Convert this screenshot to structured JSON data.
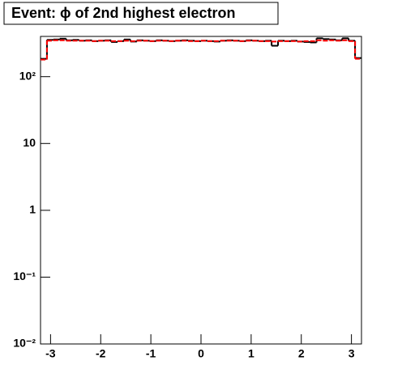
{
  "chart_data": {
    "type": "step-histogram",
    "title": "Event: ϕ of 2nd highest electron",
    "log_y": true,
    "xlim": [
      -3.2,
      3.2
    ],
    "xticks": [
      -3,
      -2,
      -1,
      0,
      1,
      2,
      3
    ],
    "ylim": [
      0.01,
      400
    ],
    "yticks": [
      {
        "value": 0.01,
        "label": "10⁻²"
      },
      {
        "value": 0.1,
        "label": "10⁻¹"
      },
      1,
      10,
      {
        "value": 100,
        "label": "10²"
      }
    ],
    "bins": [
      -3.2,
      -3.072,
      -2.944,
      -2.816,
      -2.688,
      -2.56,
      -2.432,
      -2.304,
      -2.176,
      -2.048,
      -1.92,
      -1.792,
      -1.664,
      -1.536,
      -1.408,
      -1.28,
      -1.152,
      -1.024,
      -0.896,
      -0.768,
      -0.64,
      -0.512,
      -0.384,
      -0.256,
      -0.128,
      0,
      0.128,
      0.256,
      0.384,
      0.512,
      0.64,
      0.768,
      0.896,
      1.024,
      1.152,
      1.28,
      1.408,
      1.536,
      1.664,
      1.792,
      1.92,
      2.048,
      2.176,
      2.304,
      2.432,
      2.56,
      2.688,
      2.816,
      2.944,
      3.072,
      3.2
    ],
    "series": [
      {
        "color": "#000000",
        "line_style": "solid",
        "values": [
          185,
          355,
          360,
          370,
          350,
          355,
          345,
          350,
          340,
          345,
          350,
          330,
          340,
          360,
          335,
          350,
          345,
          340,
          350,
          345,
          340,
          345,
          350,
          345,
          340,
          345,
          340,
          335,
          345,
          350,
          345,
          340,
          350,
          345,
          340,
          345,
          290,
          345,
          340,
          345,
          335,
          330,
          325,
          375,
          365,
          360,
          350,
          375,
          345,
          190
        ]
      },
      {
        "color": "#ff0000",
        "line_style": "dashed",
        "values": [
          180,
          345,
          350,
          350,
          345,
          345,
          345,
          345,
          340,
          345,
          345,
          340,
          340,
          345,
          340,
          345,
          345,
          340,
          345,
          345,
          340,
          345,
          345,
          340,
          340,
          345,
          340,
          340,
          345,
          345,
          345,
          340,
          345,
          345,
          340,
          340,
          335,
          340,
          340,
          340,
          335,
          340,
          340,
          350,
          345,
          350,
          345,
          350,
          340,
          185
        ]
      }
    ]
  }
}
